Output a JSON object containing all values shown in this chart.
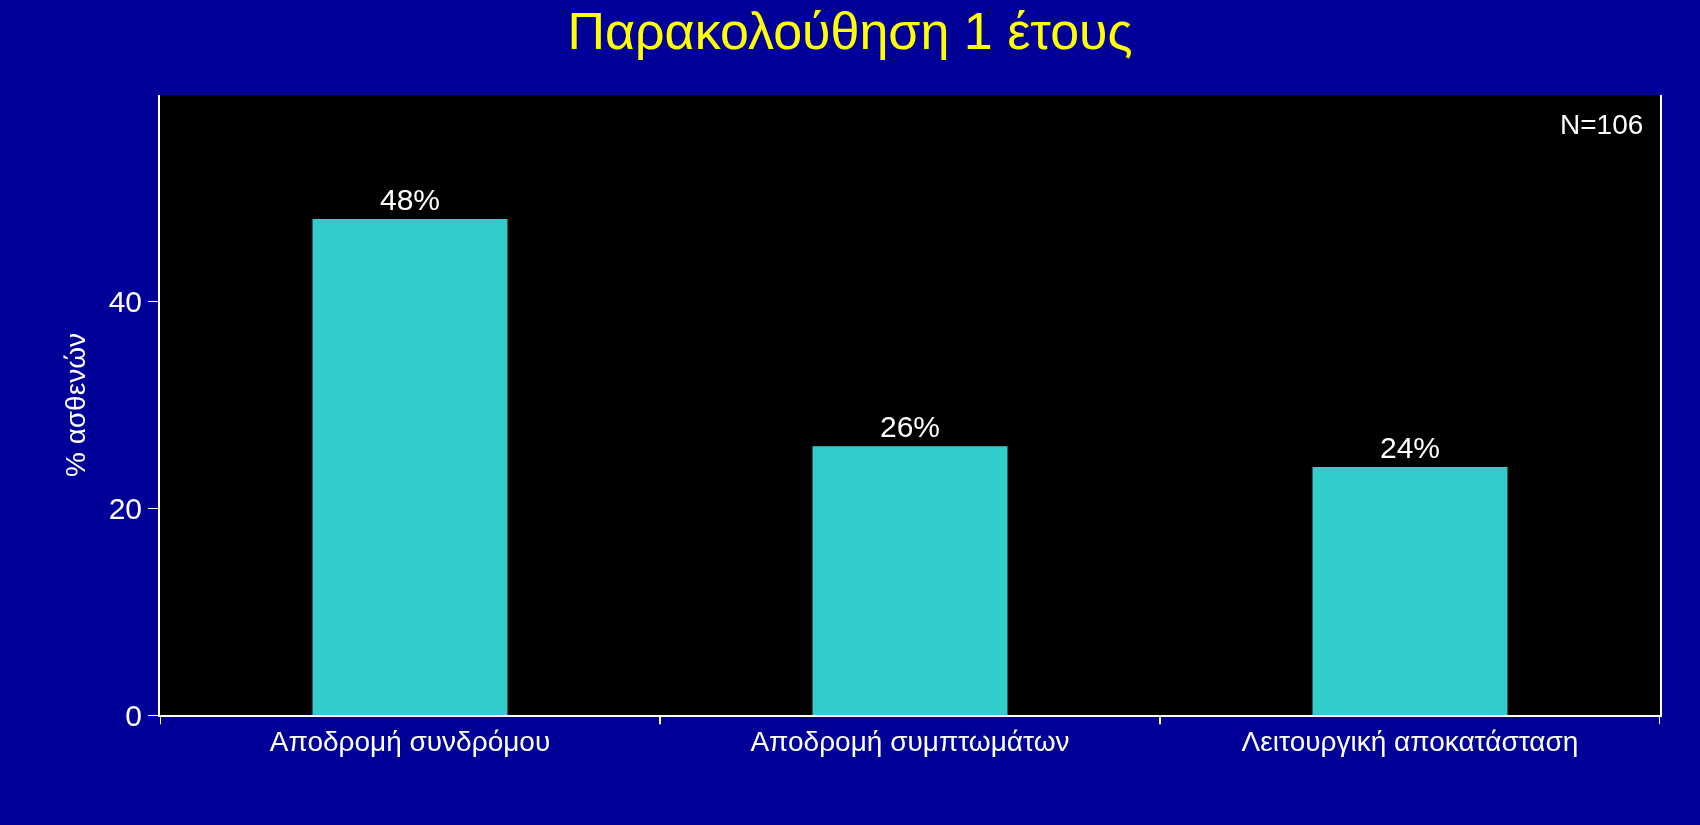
{
  "chart_data": {
    "type": "bar",
    "title": "Παρακολούθηση 1 έτους",
    "ylabel": "% ασθενών",
    "categories": [
      "Αποδρομή συνδρόμου",
      "Αποδρομή συμπτωμάτων",
      "Λειτουργική αποκατάσταση"
    ],
    "values": [
      48,
      26,
      24
    ],
    "value_labels": [
      "48%",
      "26%",
      "24%"
    ],
    "color": "#33cccc",
    "ylim": [
      0,
      60
    ],
    "yticks": [
      0,
      20,
      40
    ],
    "grid": false,
    "legend": false,
    "annotations": [
      "N=106"
    ]
  }
}
